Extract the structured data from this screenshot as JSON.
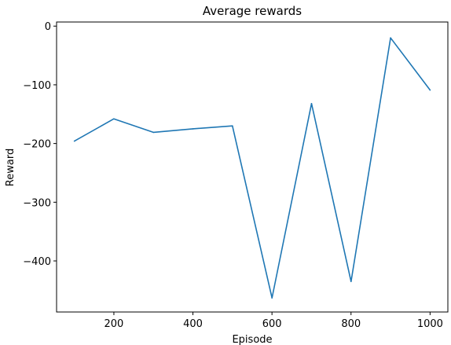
{
  "chart_data": {
    "type": "line",
    "title": "Average rewards",
    "xlabel": "Episode",
    "ylabel": "Reward",
    "xlim": [
      55,
      1045
    ],
    "ylim": [
      -487,
      7
    ],
    "xticks": [
      200,
      400,
      600,
      800,
      1000
    ],
    "xtick_labels": [
      "200",
      "400",
      "600",
      "800",
      "1000"
    ],
    "yticks": [
      0,
      -100,
      -200,
      -300,
      -400
    ],
    "ytick_labels": [
      "0",
      "−100",
      "−200",
      "−300",
      "−400"
    ],
    "grid": false,
    "legend": "none",
    "series": [
      {
        "color": "#1f77b4",
        "x": [
          100,
          200,
          300,
          400,
          500,
          600,
          700,
          800,
          900,
          1000
        ],
        "y": [
          -196,
          -158,
          -181,
          -175,
          -170,
          -463,
          -132,
          -435,
          -20,
          -109
        ]
      }
    ]
  }
}
